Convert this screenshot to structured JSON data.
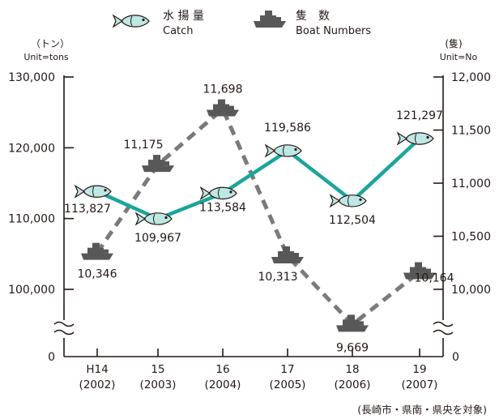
{
  "chart_data": {
    "type": "line",
    "categories": [
      "H14\n(2002)",
      "15\n(2003)",
      "16\n(2004)",
      "17\n(2005)",
      "18\n(2006)",
      "19\n(2007)"
    ],
    "series": [
      {
        "name": "水揚量 Catch",
        "axis": "left",
        "values": [
          113827,
          109967,
          113584,
          119586,
          112504,
          121297
        ],
        "labels": [
          "113,827",
          "109,967",
          "113,584",
          "119,586",
          "112,504",
          "121,297"
        ],
        "color": "#1aa59b",
        "line_style": "solid",
        "marker": "fish-icon"
      },
      {
        "name": "隻数 Boat Numbers",
        "axis": "right",
        "values": [
          10346,
          11175,
          11698,
          10313,
          9669,
          10164
        ],
        "labels": [
          "10,346",
          "11,175",
          "11,698",
          "10,313",
          "9,669",
          "10,164"
        ],
        "color": "#7a7a7a",
        "line_style": "dashed",
        "marker": "boat-icon"
      }
    ],
    "left_axis": {
      "unit_jp": "（トン）",
      "unit_en": "Unit=tons",
      "ylim": [
        100000,
        130000
      ],
      "ticks": [
        100000,
        110000,
        120000,
        130000
      ],
      "tick_labels": [
        "100,000",
        "110,000",
        "120,000",
        "130,000"
      ],
      "zero_label": "0",
      "broken": true
    },
    "right_axis": {
      "unit_jp": "(隻)",
      "unit_en": "Unit=No",
      "ylim": [
        10000,
        12000
      ],
      "ticks": [
        10000,
        10500,
        11000,
        11500,
        12000
      ],
      "tick_labels": [
        "10,000",
        "10,500",
        "11,000",
        "11,500",
        "12,000"
      ],
      "zero_label": "0",
      "broken": true
    },
    "legend": {
      "placement": "top",
      "items": [
        {
          "icon": "fish-icon",
          "jp": "水 揚 量",
          "en": "Catch"
        },
        {
          "icon": "boat-icon",
          "jp": "隻　数",
          "en": "Boat Numbers"
        }
      ]
    },
    "note": "(長崎市・県南・県央を対象)",
    "grid": false
  }
}
